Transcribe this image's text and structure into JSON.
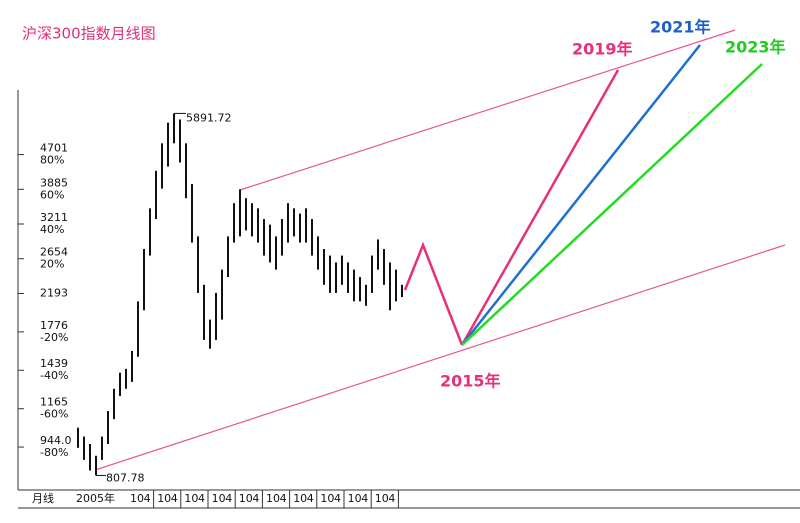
{
  "chart_data": {
    "type": "candlestick",
    "title": "沪深300指数月线图",
    "log_scale": true,
    "color": "#111111",
    "ylim": [
      754,
      6700
    ],
    "yticks": [
      {
        "value": 4701,
        "label": "4701",
        "sublabel": "80%"
      },
      {
        "value": 3885,
        "label": "3885",
        "sublabel": "60%"
      },
      {
        "value": 3211,
        "label": "3211",
        "sublabel": "40%"
      },
      {
        "value": 2654,
        "label": "2654",
        "sublabel": "20%"
      },
      {
        "value": 2193,
        "label": "2193"
      },
      {
        "value": 1776,
        "label": "1776",
        "sublabel": "-20%"
      },
      {
        "value": 1439,
        "label": "1439",
        "sublabel": "-40%"
      },
      {
        "value": 1165,
        "label": "1165",
        "sublabel": "-60%"
      },
      {
        "value": 944,
        "label": "944.0",
        "sublabel": "-80%"
      }
    ],
    "period_label": "月线",
    "xtick_labels": [
      "2005年",
      "10",
      "4",
      "10",
      "4",
      "10",
      "4",
      "10",
      "4",
      "10",
      "4",
      "10",
      "4",
      "10",
      "4",
      "10",
      "4",
      "10",
      "4",
      "10",
      "4"
    ],
    "high": [
      1050,
      1000,
      960,
      900,
      1000,
      1150,
      1300,
      1420,
      1450,
      1600,
      2100,
      2800,
      3500,
      4300,
      5000,
      5600,
      5892,
      5700,
      5000,
      4000,
      3000,
      2300,
      1900,
      2200,
      2500,
      3000,
      3600,
      3885,
      3700,
      3600,
      3500,
      3300,
      3200,
      3000,
      3300,
      3600,
      3500,
      3400,
      3500,
      3300,
      3000,
      2800,
      2700,
      2600,
      2700,
      2600,
      2500,
      2400,
      2300,
      2700,
      2950,
      2800,
      2600,
      2500,
      2300
    ],
    "low": [
      940,
      880,
      830,
      808,
      880,
      960,
      1100,
      1250,
      1300,
      1350,
      1550,
      2000,
      2700,
      3300,
      3900,
      4400,
      5000,
      4500,
      3700,
      2900,
      2200,
      1700,
      1620,
      1700,
      1900,
      2400,
      2900,
      3000,
      3100,
      3000,
      2900,
      2700,
      2600,
      2500,
      2700,
      2900,
      3000,
      2900,
      2900,
      2700,
      2500,
      2300,
      2200,
      2200,
      2300,
      2200,
      2100,
      2100,
      2050,
      2200,
      2500,
      2300,
      2000,
      2100,
      2150
    ],
    "max_label": {
      "value": 5891.72,
      "label": "5891.72"
    },
    "min_label": {
      "value": 807.78,
      "label": "807.78"
    },
    "annotations": [
      "2019年",
      "2021年",
      "2023年",
      "2015年"
    ]
  }
}
